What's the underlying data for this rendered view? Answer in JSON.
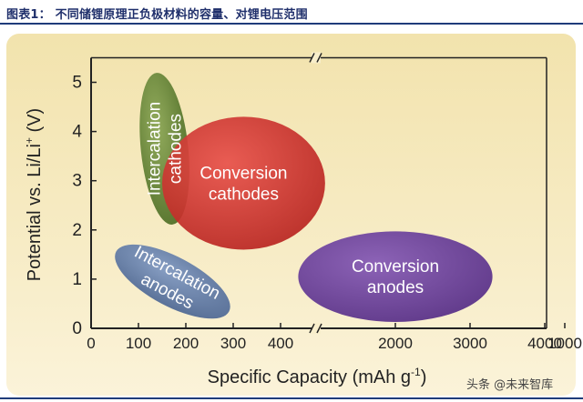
{
  "caption": "图表1：  不同储锂原理正负极材料的容量、对锂电压范围",
  "watermark": "头条 @未来智库",
  "colors": {
    "intercalation_cathodes": "#5b7d2c",
    "conversion_cathodes": "#d0302c",
    "intercalation_anodes": "#5a77a6",
    "conversion_anodes": "#6a3d9a",
    "axis": "#222222"
  },
  "chart_data": {
    "type": "scatter",
    "title": "",
    "xlabel": "Specific Capacity (mAh g",
    "xlabel_sup": "-1",
    "xlabel_end": ")",
    "ylabel": "Potential vs. Li/Li",
    "ylabel_sup": "+",
    "ylabel_end": " (V)",
    "x_axis_broken": true,
    "x_scale_note": "linear 0-1000 then compressed 1000-4000",
    "x_ticks": [
      0,
      100,
      200,
      300,
      400,
      1000,
      2000,
      3000,
      4000
    ],
    "y_ticks": [
      0,
      1,
      2,
      3,
      4,
      5
    ],
    "ylim": [
      0,
      5.5
    ],
    "regions": [
      {
        "name": "Intercalation cathodes",
        "lines": [
          "Intercalation",
          "cathodes"
        ],
        "cx": 155,
        "cy": 3.65,
        "rx": 50,
        "ry": 1.55,
        "rotate": -6,
        "color_key": "intercalation_cathodes",
        "text_vertical": true
      },
      {
        "name": "Conversion cathodes",
        "lines": [
          "Conversion",
          "cathodes"
        ],
        "cx": 322,
        "cy": 2.95,
        "rx": 172,
        "ry": 1.35,
        "rotate": 0,
        "color_key": "conversion_cathodes",
        "text_vertical": false
      },
      {
        "name": "Intercalation anodes",
        "lines": [
          "Intercalation",
          "anodes"
        ],
        "cx": 172,
        "cy": 0.95,
        "rx": 135,
        "ry": 0.5,
        "rotate": 28,
        "color_key": "intercalation_anodes",
        "text_vertical": false
      },
      {
        "name": "Conversion anodes",
        "lines": [
          "Conversion",
          "anodes"
        ],
        "cx": 2000,
        "cy": 1.05,
        "rx": 1300,
        "ry": 0.92,
        "rotate": 0,
        "color_key": "conversion_anodes",
        "text_vertical": false
      }
    ]
  }
}
